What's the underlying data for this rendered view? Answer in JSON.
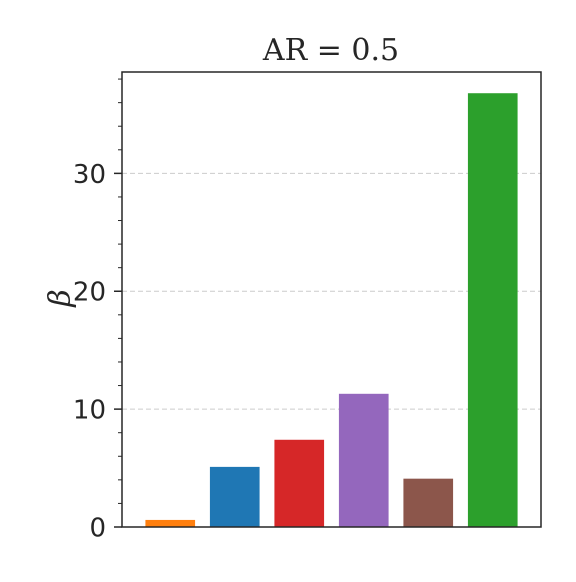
{
  "chart_data": {
    "type": "bar",
    "title": "AR = 0.5",
    "ylabel": "β",
    "categories": [
      null,
      null,
      null,
      null,
      null,
      null
    ],
    "values": [
      0.6,
      5.1,
      7.4,
      11.3,
      4.1,
      36.8
    ],
    "colors": [
      "#ff7f0e",
      "#1f77b4",
      "#d62728",
      "#9467bd",
      "#8c564b",
      "#2ca02c"
    ],
    "ylim": [
      0,
      38.6
    ],
    "yticks": [
      0,
      10,
      20,
      30
    ],
    "yminorticks": [
      2,
      4,
      6,
      8,
      12,
      14,
      16,
      18,
      22,
      24,
      26,
      28,
      32,
      34,
      36,
      38
    ],
    "grid": true
  }
}
